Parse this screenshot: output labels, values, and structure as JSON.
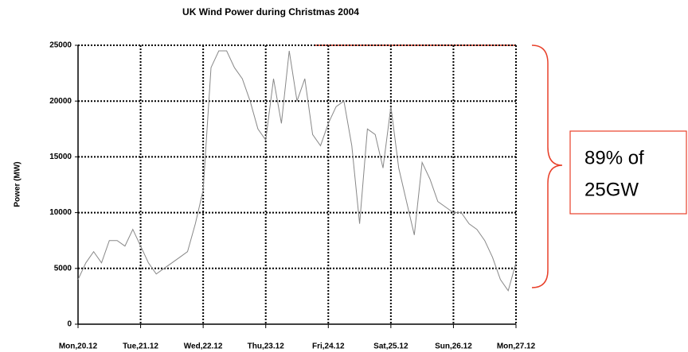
{
  "chart_data": {
    "type": "line",
    "title": "UK Wind Power during Christmas 2004",
    "y_label": "Power (MW)",
    "categories": [
      "Mon,20.12",
      null,
      null,
      null,
      null,
      null,
      null,
      null,
      "Tue,21.12",
      null,
      null,
      null,
      null,
      null,
      null,
      null,
      "Wed,22.12",
      null,
      null,
      null,
      null,
      null,
      null,
      null,
      "Thu,23.12",
      null,
      null,
      null,
      null,
      null,
      null,
      null,
      "Fri,24.12",
      null,
      null,
      null,
      null,
      null,
      null,
      null,
      "Sat,25.12",
      null,
      null,
      null,
      null,
      null,
      null,
      null,
      "Sun,26.12",
      null,
      null,
      null,
      null,
      null,
      null,
      null,
      "Mon,27.12"
    ],
    "values": [
      4000,
      5500,
      6500,
      5500,
      7500,
      7500,
      7000,
      8500,
      7000,
      5500,
      4500,
      5000,
      5500,
      6000,
      6500,
      9000,
      12000,
      23000,
      24500,
      24500,
      23000,
      22000,
      20000,
      17500,
      16500,
      22000,
      18000,
      24500,
      20000,
      22000,
      17000,
      16000,
      18000,
      19500,
      20000,
      16000,
      9000,
      17500,
      17000,
      14000,
      19500,
      14000,
      11000,
      8000,
      14500,
      13000,
      11000,
      10500,
      10000,
      10000,
      9000,
      8500,
      7500,
      6000,
      4000,
      3000,
      5500
    ],
    "color": "#888888",
    "ylim": [
      0,
      25000
    ],
    "yticks": [
      0,
      5000,
      10000,
      15000,
      20000,
      25000
    ],
    "grid": true,
    "annotation": [
      "89% of",
      "25GW"
    ]
  }
}
